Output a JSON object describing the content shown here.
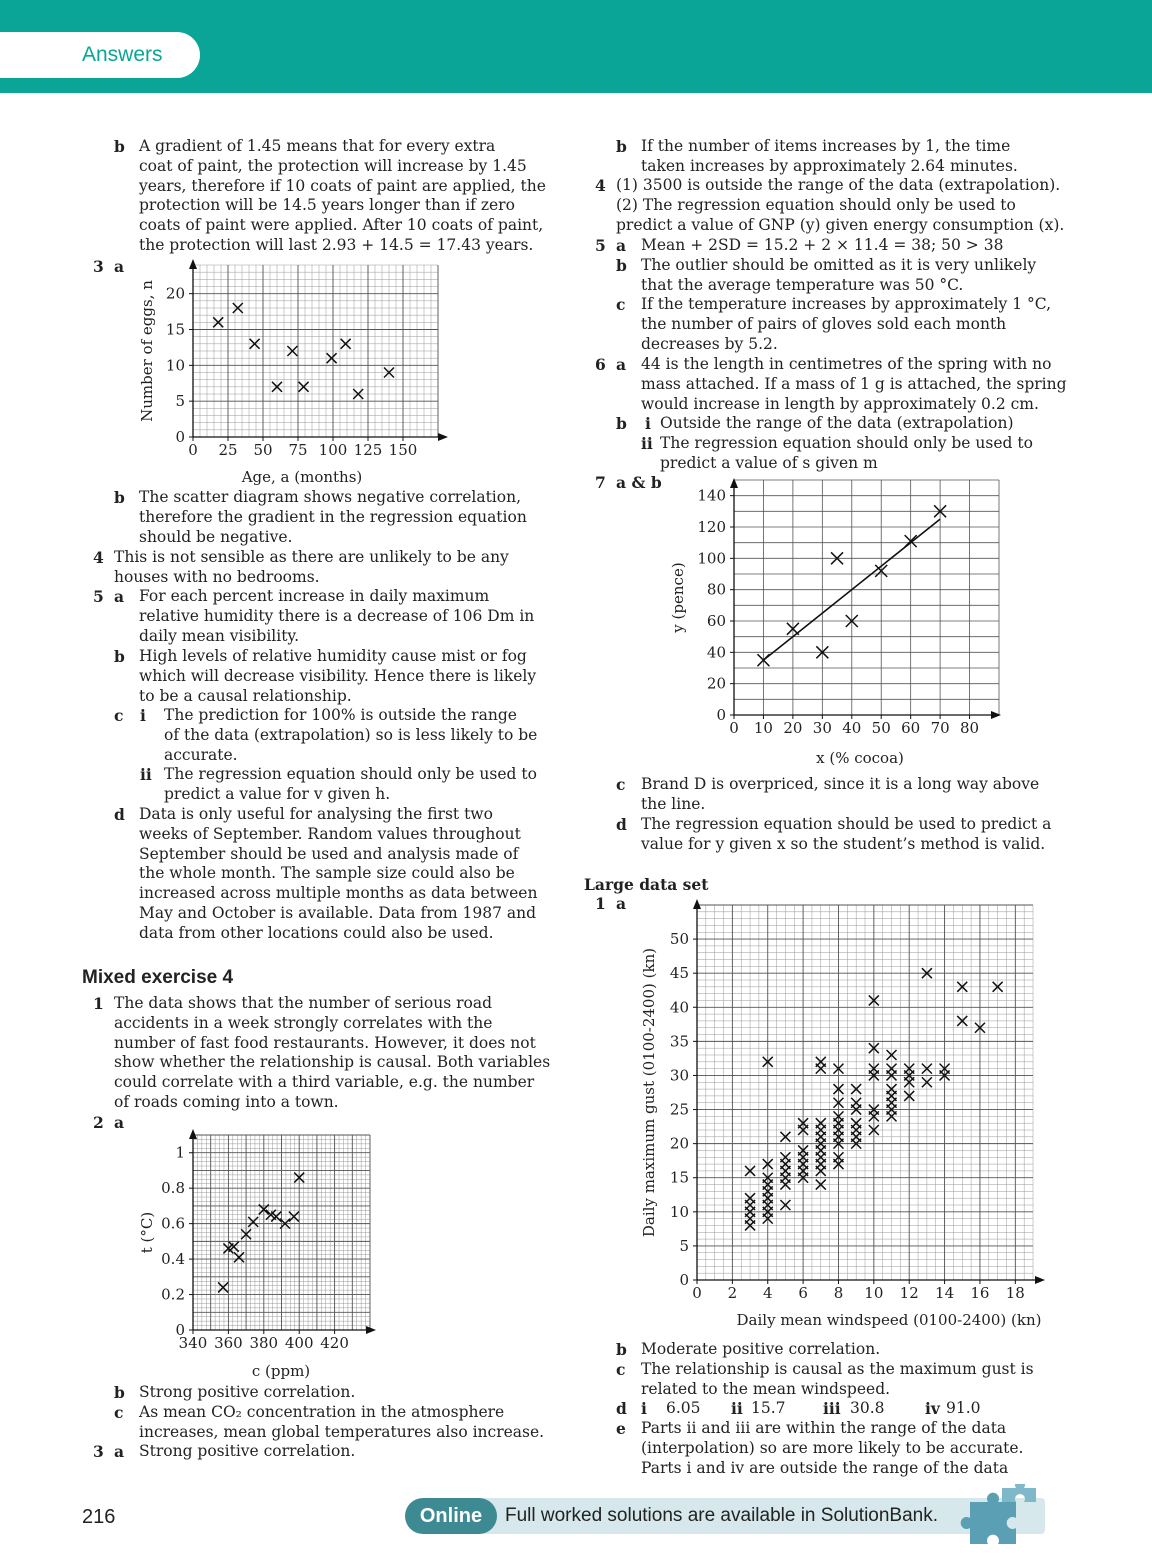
{
  "header": {
    "tab": "Answers"
  },
  "page_number": "216",
  "footer": {
    "online": "Online",
    "text": "Full worked solutions are available in SolutionBank."
  },
  "left": {
    "q2b_label": "b",
    "q2b_lines": [
      "A gradient of 1.45 means that for every extra",
      "coat of paint, the protection will increase by 1.45",
      "years, therefore if 10 coats of paint are applied, the",
      "protection will be 14.5 years longer than if zero",
      "coats of paint were applied. After 10 coats of paint,",
      "the protection will last 2.93 + 14.5 = 17.43 years."
    ],
    "q3a_num": "3",
    "q3a_label": "a",
    "q3b_label": "b",
    "q3b_lines": [
      "The scatter diagram shows negative correlation,",
      "therefore the gradient in the regression equation",
      "should be negative."
    ],
    "q4_num": "4",
    "q4_lines": [
      "This is not sensible as there are unlikely to be any",
      "houses with no bedrooms."
    ],
    "q5_num": "5",
    "q5a_label": "a",
    "q5a_lines": [
      "For each percent increase in daily maximum",
      "relative humidity there is a decrease of 106 Dm in",
      "daily mean visibility."
    ],
    "q5b_label": "b",
    "q5b_lines": [
      "High levels of relative humidity cause mist or fog",
      "which will decrease visibility. Hence there is likely",
      "to be a causal relationship."
    ],
    "q5c_label": "c",
    "q5ci_label": "i",
    "q5ci_lines": [
      "The prediction for 100% is outside the range",
      "of the data (extrapolation) so is less likely to be",
      "accurate."
    ],
    "q5cii_label": "ii",
    "q5cii_lines": [
      "The regression equation should only be used to",
      "predict a value for v given h."
    ],
    "q5d_label": "d",
    "q5d_lines": [
      "Data is only useful for analysing the first two",
      "weeks of September. Random values throughout",
      "September should be used and analysis made of",
      "the whole month. The sample size could also be",
      "increased across multiple months as data between",
      "May and October is available. Data from 1987 and",
      "data from other locations could also be used."
    ],
    "mixed_heading": "Mixed exercise 4",
    "m1_num": "1",
    "m1_lines": [
      "The data shows that the number of serious road",
      "accidents in a week strongly correlates with the",
      "number of fast food restaurants. However, it does not",
      "show whether the relationship is causal. Both variables",
      "could correlate with a third variable, e.g. the number",
      "of roads coming into a town."
    ],
    "m2_num": "2",
    "m2a_label": "a",
    "m2b_label": "b",
    "m2b_text": "Strong positive correlation.",
    "m2c_label": "c",
    "m2c_lines": [
      "As mean CO₂ concentration in the atmosphere",
      "increases, mean global temperatures also increase."
    ],
    "m3_num": "3",
    "m3a_label": "a",
    "m3a_text": "Strong positive correlation."
  },
  "right": {
    "m3b_label": "b",
    "m3b_lines": [
      "If the number of items increases by 1, the time",
      "taken increases by approximately 2.64 minutes."
    ],
    "m4_num": "4",
    "m4_lines": [
      "(1) 3500 is outside the range of the data (extrapolation).",
      "(2) The regression equation should only be used to",
      "predict a value of GNP (y) given energy consumption (x)."
    ],
    "m5_num": "5",
    "m5a_label": "a",
    "m5a_text": "Mean + 2SD = 15.2 + 2 × 11.4 = 38; 50 > 38",
    "m5b_label": "b",
    "m5b_lines": [
      "The outlier should be omitted as it is very unlikely",
      "that the average temperature was 50 °C."
    ],
    "m5c_label": "c",
    "m5c_lines": [
      "If the temperature increases by approximately 1 °C,",
      "the number of pairs of gloves sold each month",
      "decreases by 5.2."
    ],
    "m6_num": "6",
    "m6a_label": "a",
    "m6a_lines": [
      "44 is the length in centimetres of the spring with no",
      "mass attached. If a mass of 1 g is attached, the spring",
      "would increase in length by approximately 0.2 cm."
    ],
    "m6b_label": "b",
    "m6bi_label": "i",
    "m6bi_text": "Outside the range of the data (extrapolation)",
    "m6bii_label": "ii",
    "m6bii_lines": [
      "The regression equation should only be used to",
      "predict a value of s given m"
    ],
    "m7_num": "7",
    "m7ab_label": "a & b",
    "m7c_label": "c",
    "m7c_lines": [
      "Brand D is overpriced, since it is a long way above",
      "the line."
    ],
    "m7d_label": "d",
    "m7d_lines": [
      "The regression equation should be used to predict a",
      "value for y given x so the student’s method is valid."
    ],
    "lds_heading": "Large data set",
    "l1_num": "1",
    "l1a_label": "a",
    "l1b_label": "b",
    "l1b_text": "Moderate positive correlation.",
    "l1c_label": "c",
    "l1c_lines": [
      "The relationship is causal as the maximum gust is",
      "related to the mean windspeed."
    ],
    "l1d_label": "d",
    "l1d_items": [
      {
        "label": "i",
        "value": "6.05"
      },
      {
        "label": "ii",
        "value": "15.7"
      },
      {
        "label": "iii",
        "value": "30.8"
      },
      {
        "label": "iv",
        "value": "91.0"
      }
    ],
    "l1e_label": "e",
    "l1e_lines": [
      "Parts ii and iii are within the range of the data",
      "(interpolation) so are more likely to be accurate.",
      "Parts i and iv are outside the range of the data"
    ]
  },
  "chart_data": [
    {
      "id": "eggs",
      "type": "scatter",
      "xlabel": "Age, a (months)",
      "ylabel": "Number of eggs, n",
      "xlim": [
        0,
        175
      ],
      "ylim": [
        0,
        24
      ],
      "xticks": [
        0,
        25,
        50,
        75,
        100,
        125,
        150
      ],
      "yticks": [
        0,
        5,
        10,
        15,
        20
      ],
      "points": [
        [
          18,
          16
        ],
        [
          32,
          18
        ],
        [
          44,
          13
        ],
        [
          60,
          7
        ],
        [
          71,
          12
        ],
        [
          79,
          7
        ],
        [
          99,
          11
        ],
        [
          109,
          13
        ],
        [
          118,
          6
        ],
        [
          140,
          9
        ]
      ]
    },
    {
      "id": "temperature",
      "type": "scatter",
      "xlabel": "c (ppm)",
      "ylabel": "t (°C)",
      "xlim": [
        340,
        440
      ],
      "ylim": [
        0,
        1.1
      ],
      "xticks": [
        340,
        360,
        380,
        400,
        420
      ],
      "yticks": [
        0,
        0.2,
        0.4,
        0.6,
        0.8,
        1
      ],
      "points": [
        [
          357,
          0.24
        ],
        [
          360,
          0.46
        ],
        [
          363,
          0.47
        ],
        [
          366,
          0.41
        ],
        [
          370,
          0.54
        ],
        [
          374,
          0.61
        ],
        [
          380,
          0.68
        ],
        [
          384,
          0.65
        ],
        [
          387,
          0.64
        ],
        [
          392,
          0.6
        ],
        [
          397,
          0.64
        ],
        [
          400,
          0.86
        ]
      ]
    },
    {
      "id": "cocoa",
      "type": "scatter",
      "xlabel": "x (% cocoa)",
      "ylabel": "y (pence)",
      "xlim": [
        0,
        90
      ],
      "ylim": [
        0,
        150
      ],
      "xticks": [
        0,
        10,
        20,
        30,
        40,
        50,
        60,
        70,
        80
      ],
      "yticks": [
        0,
        20,
        40,
        60,
        80,
        100,
        120,
        140
      ],
      "points": [
        [
          10,
          35
        ],
        [
          20,
          55
        ],
        [
          30,
          40
        ],
        [
          35,
          100
        ],
        [
          40,
          60
        ],
        [
          50,
          92
        ],
        [
          60,
          111
        ],
        [
          70,
          130
        ]
      ],
      "regression_line": [
        [
          10,
          35
        ],
        [
          70,
          125
        ]
      ]
    },
    {
      "id": "windspeed",
      "type": "scatter",
      "xlabel": "Daily mean windspeed (0100-2400) (kn)",
      "ylabel": "Daily maximum gust (0100-2400) (kn)",
      "xlim": [
        0,
        19
      ],
      "ylim": [
        0,
        55
      ],
      "xticks": [
        0,
        2,
        4,
        6,
        8,
        10,
        12,
        14,
        16,
        18
      ],
      "yticks": [
        0,
        5,
        10,
        15,
        20,
        25,
        30,
        35,
        40,
        45,
        50
      ],
      "points": [
        [
          3,
          8
        ],
        [
          3,
          9
        ],
        [
          3,
          10
        ],
        [
          3,
          11
        ],
        [
          3,
          12
        ],
        [
          3,
          16
        ],
        [
          4,
          9
        ],
        [
          4,
          10
        ],
        [
          4,
          11
        ],
        [
          4,
          12
        ],
        [
          4,
          13
        ],
        [
          4,
          14
        ],
        [
          4,
          15
        ],
        [
          4,
          17
        ],
        [
          4,
          32
        ],
        [
          5,
          11
        ],
        [
          5,
          14
        ],
        [
          5,
          15
        ],
        [
          5,
          16
        ],
        [
          5,
          17
        ],
        [
          5,
          18
        ],
        [
          5,
          21
        ],
        [
          6,
          15
        ],
        [
          6,
          16
        ],
        [
          6,
          17
        ],
        [
          6,
          18
        ],
        [
          6,
          19
        ],
        [
          6,
          22
        ],
        [
          6,
          23
        ],
        [
          7,
          14
        ],
        [
          7,
          16
        ],
        [
          7,
          17
        ],
        [
          7,
          18
        ],
        [
          7,
          19
        ],
        [
          7,
          20
        ],
        [
          7,
          21
        ],
        [
          7,
          22
        ],
        [
          7,
          23
        ],
        [
          7,
          31
        ],
        [
          7,
          32
        ],
        [
          8,
          17
        ],
        [
          8,
          18
        ],
        [
          8,
          20
        ],
        [
          8,
          21
        ],
        [
          8,
          22
        ],
        [
          8,
          23
        ],
        [
          8,
          24
        ],
        [
          8,
          26
        ],
        [
          8,
          28
        ],
        [
          8,
          31
        ],
        [
          9,
          20
        ],
        [
          9,
          21
        ],
        [
          9,
          22
        ],
        [
          9,
          23
        ],
        [
          9,
          25
        ],
        [
          9,
          26
        ],
        [
          9,
          28
        ],
        [
          10,
          22
        ],
        [
          10,
          24
        ],
        [
          10,
          25
        ],
        [
          10,
          30
        ],
        [
          10,
          31
        ],
        [
          10,
          34
        ],
        [
          10,
          41
        ],
        [
          11,
          24
        ],
        [
          11,
          25
        ],
        [
          11,
          26
        ],
        [
          11,
          27
        ],
        [
          11,
          28
        ],
        [
          11,
          30
        ],
        [
          11,
          31
        ],
        [
          11,
          33
        ],
        [
          12,
          27
        ],
        [
          12,
          29
        ],
        [
          12,
          30
        ],
        [
          12,
          31
        ],
        [
          13,
          29
        ],
        [
          13,
          31
        ],
        [
          13,
          45
        ],
        [
          14,
          30
        ],
        [
          14,
          31
        ],
        [
          15,
          38
        ],
        [
          15,
          43
        ],
        [
          16,
          37
        ],
        [
          17,
          43
        ]
      ]
    }
  ]
}
